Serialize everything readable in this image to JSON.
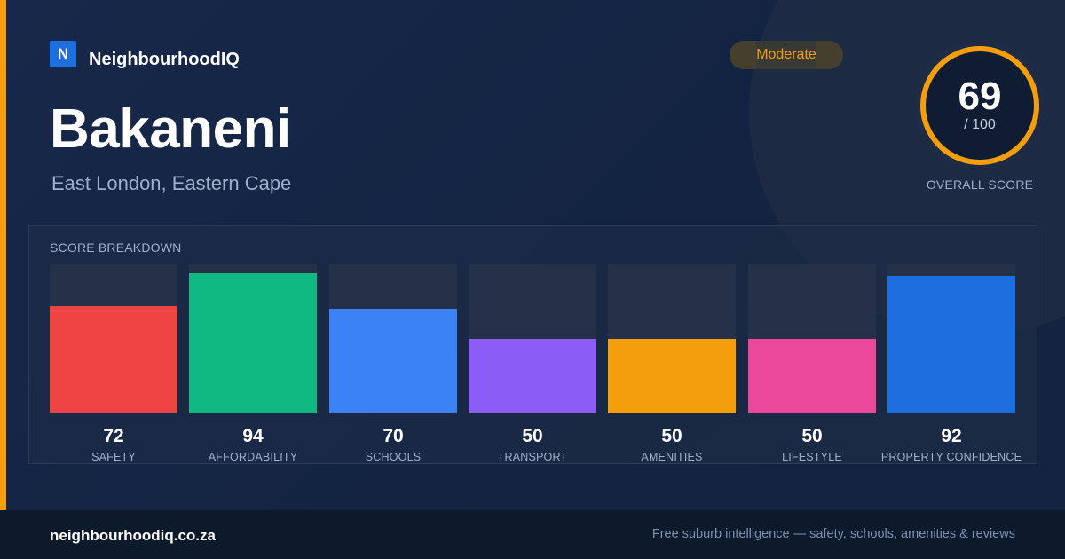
{
  "brand": {
    "logo_letter": "N",
    "name": "NeighbourhoodIQ",
    "color": "#1d6fe0"
  },
  "suburb": {
    "name": "Bakaneni",
    "location": "East London, Eastern Cape"
  },
  "rating_badge": {
    "label": "Moderate",
    "color": "#f59e0b"
  },
  "overall_score": {
    "value": "69",
    "max_label": "/ 100",
    "fraction": 0.69,
    "label": "OVERALL SCORE",
    "ring_color": "#f59e0b"
  },
  "breakdown": {
    "title": "SCORE BREAKDOWN",
    "metrics": [
      {
        "label": "SAFETY",
        "value": "72",
        "score": 72,
        "color": "#ef4444"
      },
      {
        "label": "AFFORDABILITY",
        "value": "94",
        "score": 94,
        "color": "#10b981"
      },
      {
        "label": "SCHOOLS",
        "value": "70",
        "score": 70,
        "color": "#3b82f6"
      },
      {
        "label": "TRANSPORT",
        "value": "50",
        "score": 50,
        "color": "#8b5cf6"
      },
      {
        "label": "AMENITIES",
        "value": "50",
        "score": 50,
        "color": "#f59e0b"
      },
      {
        "label": "LIFESTYLE",
        "value": "50",
        "score": 50,
        "color": "#ec4899"
      },
      {
        "label": "PROPERTY CONFIDENCE",
        "value": "92",
        "score": 92,
        "color": "#1d6fe0"
      }
    ]
  },
  "footer": {
    "url": "neighbourhoodiq.co.za",
    "tagline": "Free suburb intelligence — safety, schools, amenities & reviews"
  }
}
